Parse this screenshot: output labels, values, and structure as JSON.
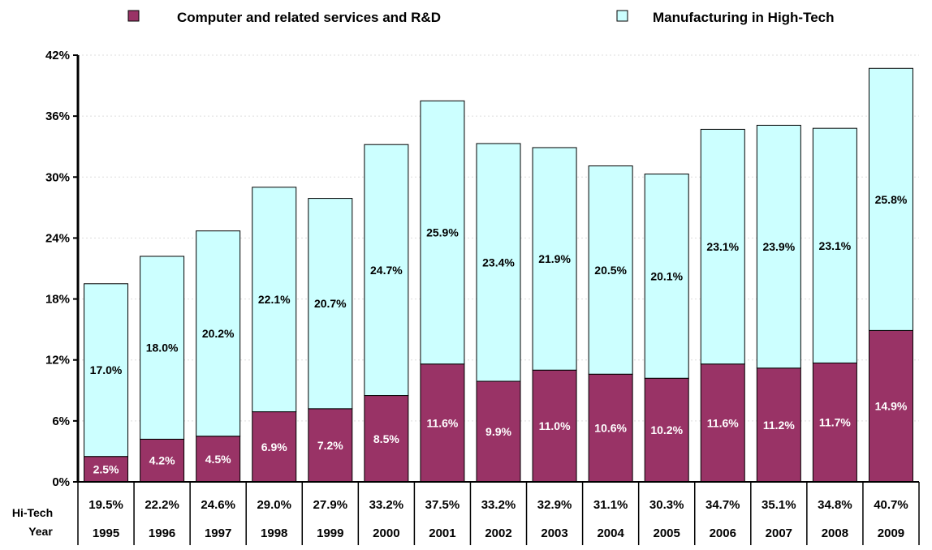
{
  "chart_data": {
    "type": "bar",
    "stacked": true,
    "categories": [
      "1995",
      "1996",
      "1997",
      "1998",
      "1999",
      "2000",
      "2001",
      "2002",
      "2003",
      "2004",
      "2005",
      "2006",
      "2007",
      "2008",
      "2009"
    ],
    "series": [
      {
        "name": "Computer and related services and R&D",
        "color": "#993366",
        "values": [
          2.5,
          4.2,
          4.5,
          6.9,
          7.2,
          8.5,
          11.6,
          9.9,
          11.0,
          10.6,
          10.2,
          11.6,
          11.2,
          11.7,
          14.9
        ],
        "labels": [
          "2.5%",
          "4.2%",
          "4.5%",
          "6.9%",
          "7.2%",
          "8.5%",
          "11.6%",
          "9.9%",
          "11.0%",
          "10.6%",
          "10.2%",
          "11.6%",
          "11.2%",
          "11.7%",
          "14.9%"
        ]
      },
      {
        "name": "Manufacturing in High-Tech",
        "color": "#CCFFFF",
        "values": [
          17.0,
          18.0,
          20.2,
          22.1,
          20.7,
          24.7,
          25.9,
          23.4,
          21.9,
          20.5,
          20.1,
          23.1,
          23.9,
          23.1,
          25.8
        ],
        "labels": [
          "17.0%",
          "18.0%",
          "20.2%",
          "22.1%",
          "20.7%",
          "24.7%",
          "25.9%",
          "23.4%",
          "21.9%",
          "20.5%",
          "20.1%",
          "23.1%",
          "23.9%",
          "23.1%",
          "25.8%"
        ]
      }
    ],
    "ylim": [
      0,
      42
    ],
    "y_ticks": [
      "0%",
      "6%",
      "12%",
      "18%",
      "24%",
      "30%",
      "36%",
      "42%"
    ],
    "y_tick_values": [
      0,
      6,
      12,
      18,
      24,
      30,
      36,
      42
    ],
    "grid": true,
    "legend_position": "top",
    "table": {
      "row_headers": [
        "Hi-Tech",
        "Year"
      ],
      "hi_tech": [
        "19.5%",
        "22.2%",
        "24.6%",
        "29.0%",
        "27.9%",
        "33.2%",
        "37.5%",
        "33.2%",
        "32.9%",
        "31.1%",
        "30.3%",
        "34.7%",
        "35.1%",
        "34.8%",
        "40.7%"
      ],
      "years": [
        "1995",
        "1996",
        "1997",
        "1998",
        "1999",
        "2000",
        "2001",
        "2002",
        "2003",
        "2004",
        "2005",
        "2006",
        "2007",
        "2008",
        "2009"
      ]
    }
  }
}
